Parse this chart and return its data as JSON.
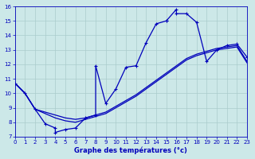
{
  "xlabel": "Graphe des températures (°c)",
  "xlim": [
    0,
    23
  ],
  "ylim": [
    7,
    16
  ],
  "xticks": [
    0,
    1,
    2,
    3,
    4,
    5,
    6,
    7,
    8,
    9,
    10,
    11,
    12,
    13,
    14,
    15,
    16,
    17,
    18,
    19,
    20,
    21,
    22,
    23
  ],
  "yticks": [
    7,
    8,
    9,
    10,
    11,
    12,
    13,
    14,
    15,
    16
  ],
  "bg_color": "#cce8e8",
  "line_color": "#0000bb",
  "grid_color": "#aacccc",
  "curve1_x": [
    0,
    1,
    2,
    3,
    4,
    4,
    5,
    6,
    7,
    8,
    8,
    9,
    10,
    11,
    12,
    13,
    14,
    15,
    15,
    16,
    16,
    17,
    18,
    19,
    20,
    21,
    22,
    23
  ],
  "curve1_y": [
    10.7,
    10.0,
    8.9,
    7.9,
    7.6,
    7.3,
    7.5,
    7.6,
    8.3,
    8.5,
    11.9,
    9.3,
    10.3,
    11.8,
    11.9,
    13.5,
    14.8,
    15.0,
    15.0,
    15.8,
    15.5,
    15.5,
    14.9,
    12.2,
    13.0,
    13.3,
    13.4,
    12.5
  ],
  "curve2_x": [
    0,
    1,
    2,
    3,
    4,
    5,
    6,
    7,
    8,
    9,
    10,
    11,
    12,
    13,
    14,
    15,
    16,
    17,
    18,
    19,
    20,
    21,
    22,
    23
  ],
  "curve2_y": [
    10.7,
    10.0,
    8.9,
    8.7,
    8.5,
    8.3,
    8.2,
    8.3,
    8.5,
    8.7,
    9.1,
    9.5,
    9.9,
    10.4,
    10.9,
    11.4,
    11.9,
    12.4,
    12.7,
    12.9,
    13.1,
    13.2,
    13.3,
    12.2
  ],
  "curve3_x": [
    0,
    1,
    2,
    3,
    4,
    5,
    6,
    7,
    8,
    9,
    10,
    11,
    12,
    13,
    14,
    15,
    16,
    17,
    18,
    19,
    20,
    21,
    22,
    23
  ],
  "curve3_y": [
    10.7,
    10.0,
    8.9,
    8.6,
    8.3,
    8.1,
    8.0,
    8.2,
    8.4,
    8.6,
    9.0,
    9.4,
    9.8,
    10.3,
    10.8,
    11.3,
    11.8,
    12.3,
    12.6,
    12.8,
    13.0,
    13.1,
    13.2,
    12.1
  ]
}
